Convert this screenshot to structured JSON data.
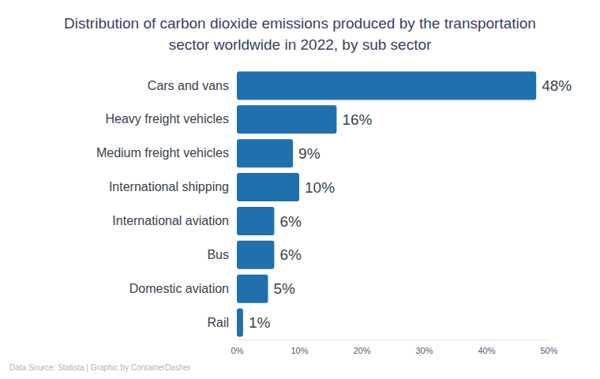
{
  "chart_data": {
    "type": "bar",
    "orientation": "horizontal",
    "title": [
      "Distribution of carbon dioxide emissions produced by the transportation",
      "sector worldwide in 2022, by sub sector"
    ],
    "source": "Data Source: Statista | Graphic by ContainerDasher",
    "categories": [
      "Cars and vans",
      "Heavy freight vehicles",
      "Medium freight vehicles",
      "International shipping",
      "International aviation",
      "Bus",
      "Domestic aviation",
      "Rail"
    ],
    "values": [
      48,
      16,
      9,
      10,
      6,
      6,
      5,
      1
    ],
    "value_labels": [
      "48%",
      "16%",
      "9%",
      "10%",
      "6%",
      "6%",
      "5%",
      "1%"
    ],
    "data_labels": true,
    "color": "#2070ad",
    "xlim": [
      0,
      50
    ],
    "xticks": [
      {
        "value": 0,
        "label": "0%"
      },
      {
        "value": 10,
        "label": "10%"
      },
      {
        "value": 20,
        "label": "20%"
      },
      {
        "value": 30,
        "label": "30%"
      },
      {
        "value": 40,
        "label": "40%"
      },
      {
        "value": 50,
        "label": "50%"
      }
    ],
    "grid": false
  }
}
